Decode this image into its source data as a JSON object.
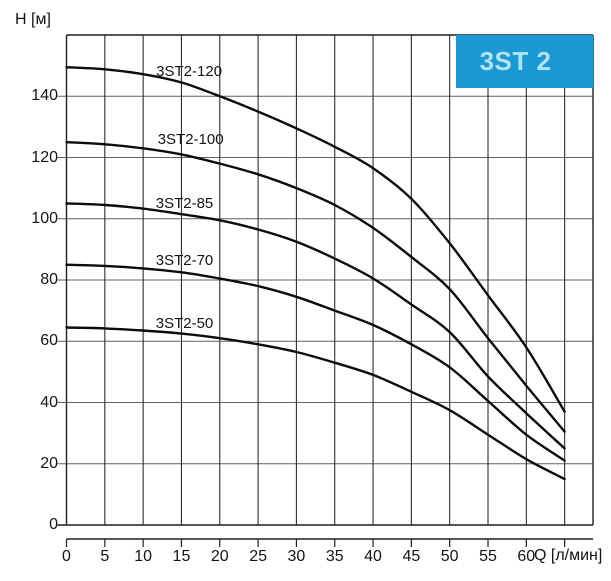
{
  "page": {
    "background": "#ffffff"
  },
  "badge": {
    "label": "3ST 2",
    "bg_color": "#1a99d4",
    "text_color": "#b0e2f4"
  },
  "chart_data": {
    "type": "line",
    "title": "",
    "xlabel": "Q [л/мин]",
    "ylabel": "H [м]",
    "xlim": [
      0,
      68.7
    ],
    "ylim": [
      0,
      160
    ],
    "grid": true,
    "legend_position": "none",
    "x_ticks": [
      0,
      5,
      10,
      15,
      20,
      25,
      30,
      35,
      40,
      45,
      50,
      55,
      60
    ],
    "x_gridlines": [
      5,
      10,
      15,
      20,
      25,
      30,
      35,
      40,
      45,
      50,
      55,
      60,
      65
    ],
    "y_ticks": [
      0,
      20,
      40,
      60,
      80,
      100,
      120,
      140
    ],
    "x": [
      0,
      5,
      10,
      15,
      20,
      25,
      30,
      35,
      40,
      45,
      50,
      55,
      60,
      65
    ],
    "series": [
      {
        "name": "3ST2-120",
        "values": [
          149.5,
          148.8,
          147.2,
          144.5,
          140,
          135,
          129.5,
          123.5,
          116.5,
          106.5,
          92,
          75,
          58,
          37
        ],
        "label_q": 16.0,
        "label_h": 147.8
      },
      {
        "name": "3ST2-100",
        "values": [
          125,
          124.3,
          123,
          121,
          118,
          114.5,
          110,
          104.5,
          97,
          87.5,
          77,
          61,
          45.5,
          30.5
        ],
        "label_q": 16.2,
        "label_h": 125.7
      },
      {
        "name": "3ST2-85",
        "values": [
          105,
          104.5,
          103.3,
          101.5,
          99.5,
          96.5,
          92.5,
          87,
          80.5,
          72,
          63,
          48.5,
          36.5,
          25
        ],
        "label_q": 15.4,
        "label_h": 104.8
      },
      {
        "name": "3ST2-70",
        "values": [
          85,
          84.6,
          83.8,
          82.5,
          80.5,
          78,
          74.5,
          70,
          65.3,
          59,
          51.5,
          40.5,
          29.5,
          21
        ],
        "label_q": 15.4,
        "label_h": 86.2
      },
      {
        "name": "3ST2-50",
        "values": [
          64.5,
          64.2,
          63.5,
          62.5,
          61,
          59,
          56.5,
          53,
          49,
          43.5,
          37.5,
          29.5,
          21.5,
          15
        ],
        "label_q": 15.4,
        "label_h": 65.6
      }
    ],
    "curve_color": "#0c0c0c",
    "h_grid_color": "#606060",
    "v_grid_color": "#2e2e2e",
    "frame_color": "#1f1f1f"
  }
}
